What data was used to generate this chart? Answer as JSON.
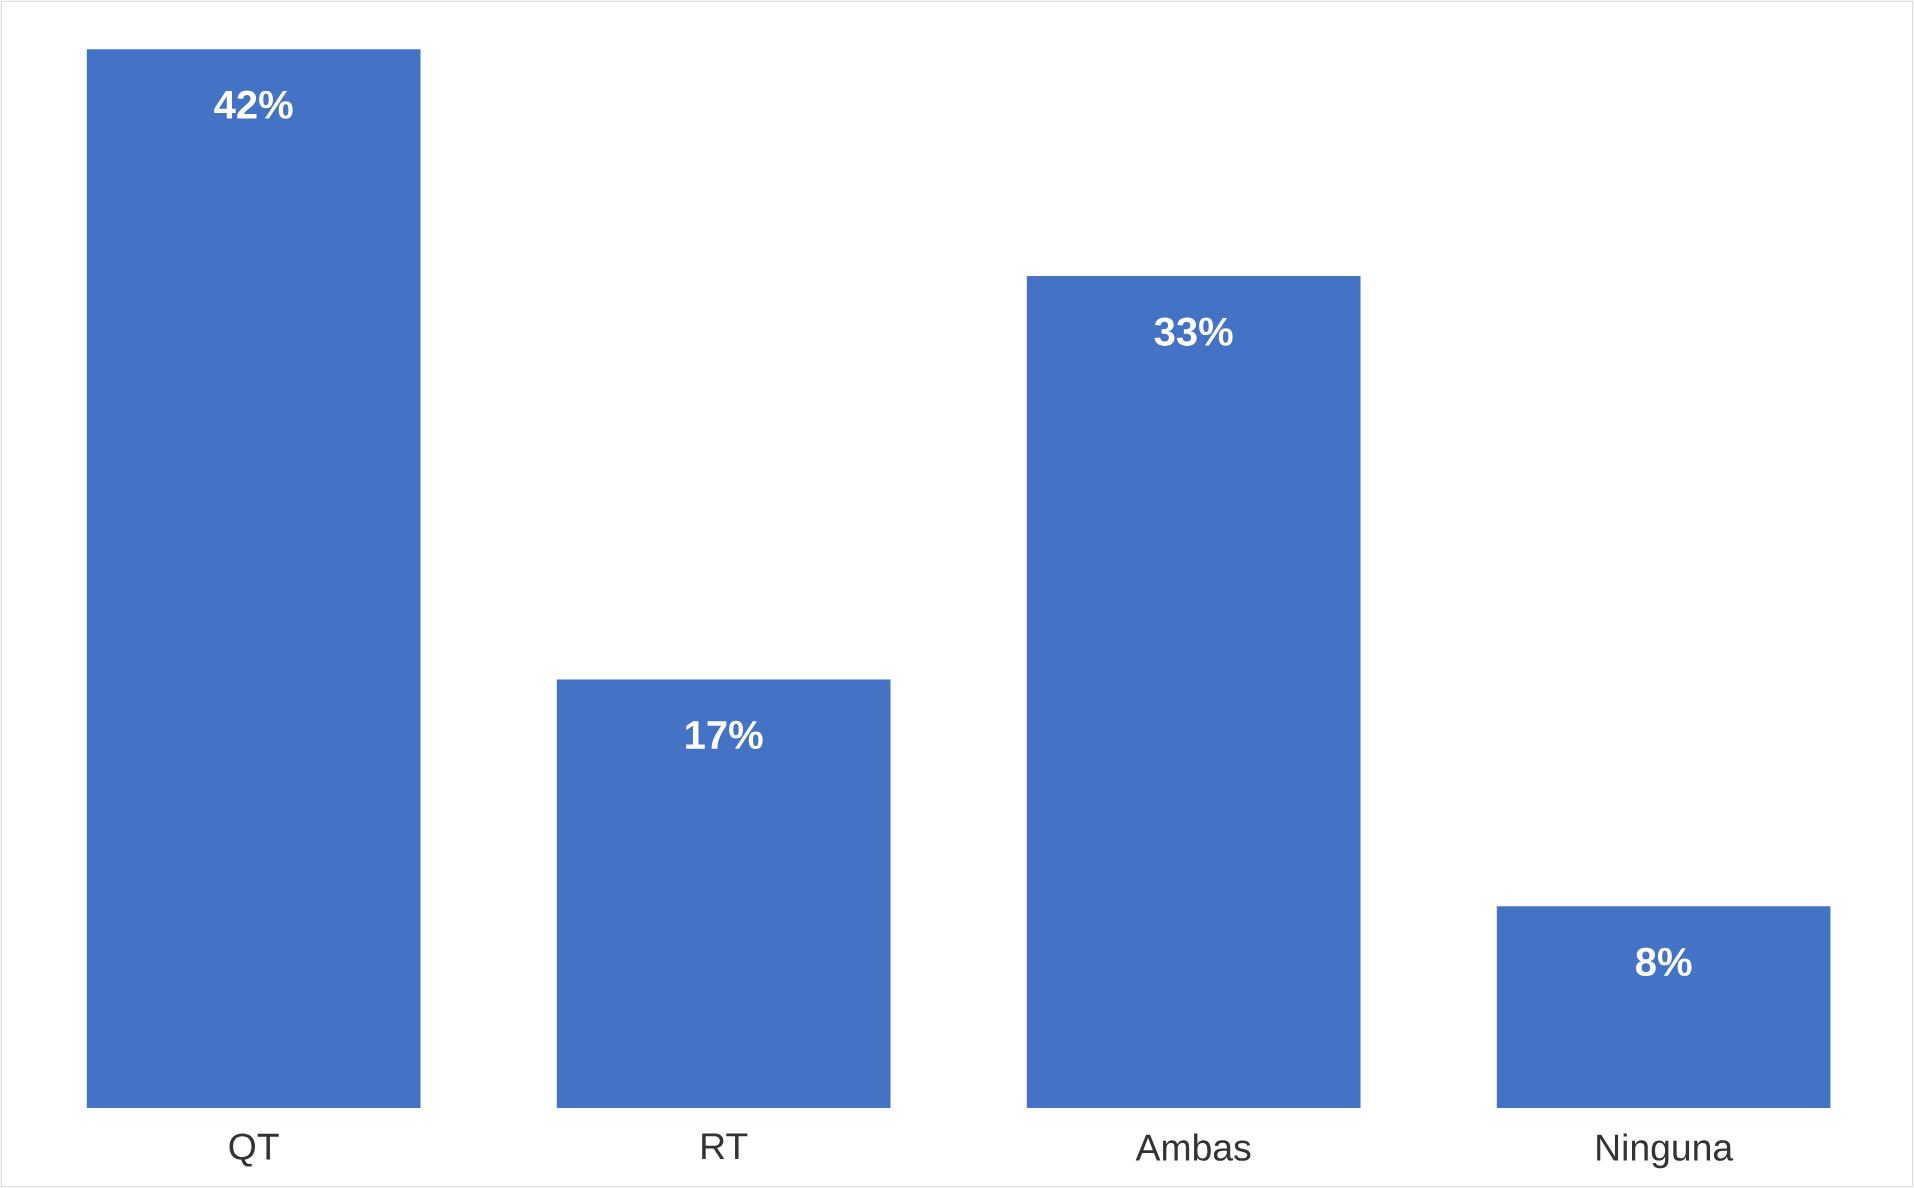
{
  "chart_data": {
    "type": "bar",
    "categories": [
      "QT",
      "RT",
      "Ambas",
      "Ninguna"
    ],
    "values": [
      42,
      17,
      33,
      8
    ],
    "value_labels": [
      "42%",
      "17%",
      "33%",
      "8%"
    ],
    "color": "#4472c4"
  }
}
